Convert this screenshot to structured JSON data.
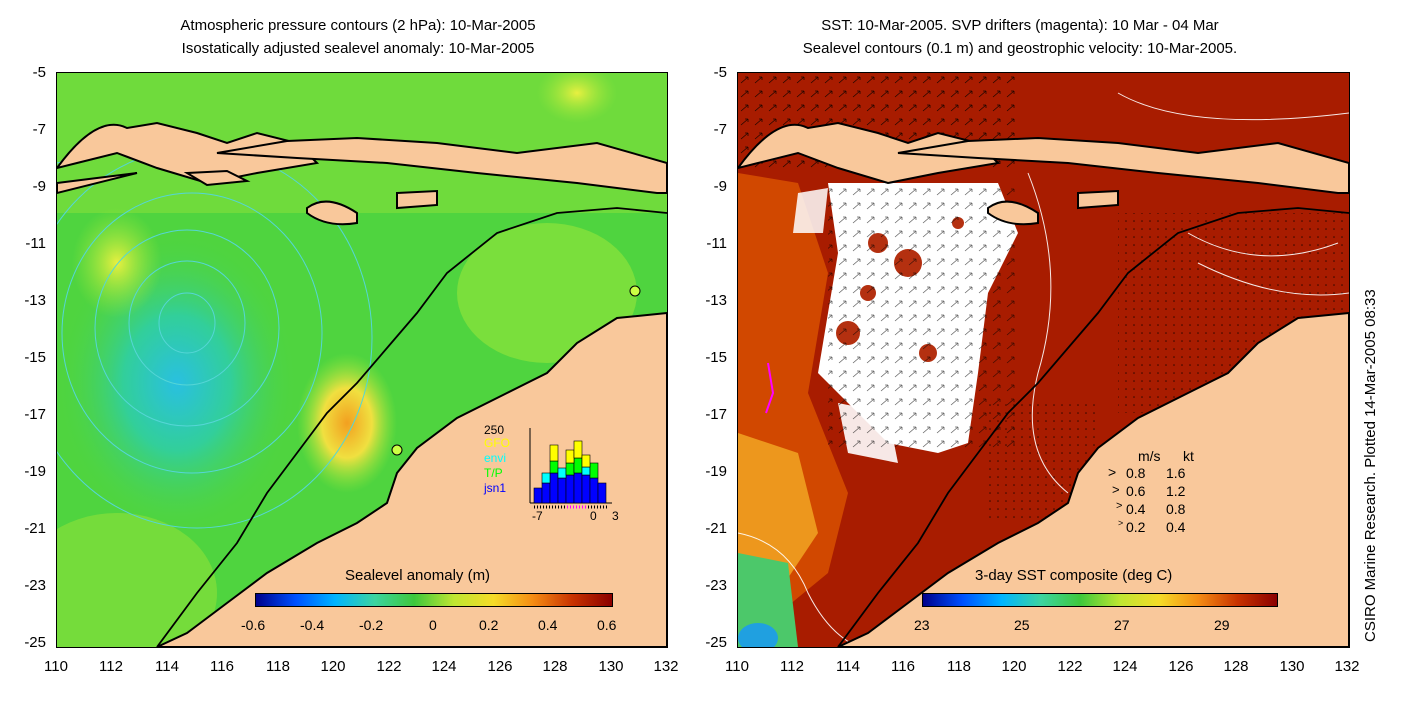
{
  "left_panel": {
    "title_line1": "Atmospheric pressure contours (2 hPa): 10-Mar-2005",
    "title_line2": "Isostatically adjusted sealevel anomaly: 10-Mar-2005",
    "y_ticks": [
      "-5",
      "-7",
      "-9",
      "-11",
      "-13",
      "-15",
      "-17",
      "-19",
      "-21",
      "-23",
      "-25"
    ],
    "x_ticks": [
      "110",
      "112",
      "114",
      "116",
      "118",
      "120",
      "122",
      "124",
      "126",
      "128",
      "130",
      "132"
    ],
    "colorbar_title": "Sealevel anomaly (m)",
    "colorbar_labels": [
      "-0.6",
      "-0.4",
      "-0.2",
      "0",
      "0.2",
      "0.4",
      "0.6"
    ],
    "inset": {
      "ymax_label": "250",
      "series": [
        {
          "name": "GFO",
          "color": "#ffff00"
        },
        {
          "name": "envi",
          "color": "#00ffff"
        },
        {
          "name": "T/P",
          "color": "#00ff00"
        },
        {
          "name": "jsn1",
          "color": "#0000ff"
        }
      ],
      "x_labels": [
        "-7",
        "0",
        "3"
      ]
    }
  },
  "right_panel": {
    "title_line1": "SST: 10-Mar-2005. SVP drifters (magenta): 10 Mar - 04 Mar",
    "title_line2": "Sealevel contours (0.1 m) and geostrophic velocity: 10-Mar-2005.",
    "y_ticks": [
      "-5",
      "-7",
      "-9",
      "-11",
      "-13",
      "-15",
      "-17",
      "-19",
      "-21",
      "-23",
      "-25"
    ],
    "x_ticks": [
      "110",
      "112",
      "114",
      "116",
      "118",
      "120",
      "122",
      "124",
      "126",
      "128",
      "130",
      "132"
    ],
    "colorbar_title": "3-day SST composite (deg C)",
    "colorbar_labels": [
      "23",
      "25",
      "27",
      "29"
    ],
    "velocity_legend": {
      "header_ms": "m/s",
      "header_kt": "kt",
      "rows": [
        {
          "ms": "0.8",
          "kt": "1.6"
        },
        {
          "ms": "0.6",
          "kt": "1.2"
        },
        {
          "ms": "0.4",
          "kt": "0.8"
        },
        {
          "ms": "0.2",
          "kt": "0.4"
        }
      ]
    }
  },
  "credit": "CSIRO Marine Research. Plotted 14-Mar-2005 08:33",
  "colors": {
    "land": "#f9c89b",
    "sea_green": "#4fd43f",
    "sst_dark_red": "#a81c00",
    "contour_cyan": "#55d6d6"
  }
}
